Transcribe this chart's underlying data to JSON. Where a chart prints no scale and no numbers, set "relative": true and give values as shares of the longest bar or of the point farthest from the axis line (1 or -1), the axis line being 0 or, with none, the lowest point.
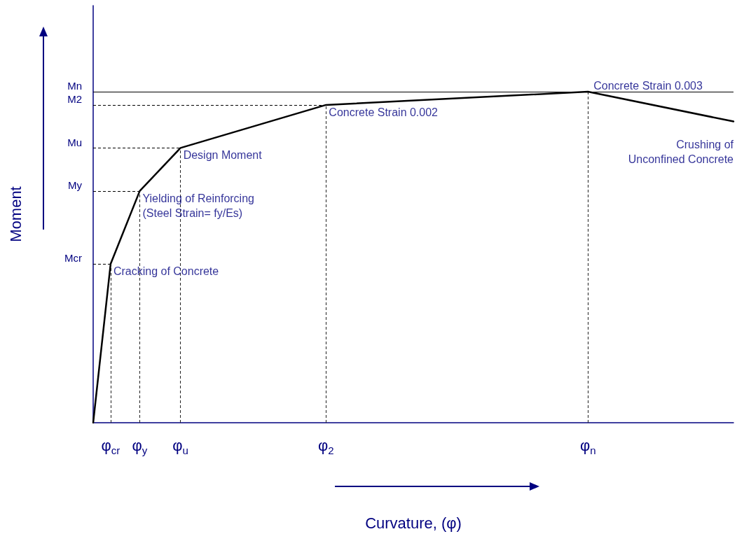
{
  "chart_data": {
    "type": "line",
    "relative": true,
    "xlabel": "Curvature, (φ)",
    "ylabel": "Moment",
    "categories": [
      null,
      null,
      null,
      "φ$_{cr}$",
      null,
      null,
      null,
      null,
      "φ$_{y}$",
      null,
      null,
      null,
      null,
      null,
      null,
      "φ$_{u}$",
      null,
      null,
      null,
      null,
      null,
      null,
      null,
      null,
      null,
      null,
      null,
      null,
      null,
      null,
      null,
      null,
      null,
      null,
      null,
      null,
      null,
      null,
      null,
      null,
      "φ$_{2}$",
      null,
      null,
      null,
      null,
      null,
      null,
      null,
      null,
      null,
      null,
      null,
      null,
      null,
      null,
      null,
      null,
      null,
      null,
      null,
      null,
      null,
      null,
      null,
      null,
      null,
      null,
      null,
      null,
      null,
      null,
      null,
      null,
      null,
      null,
      null,
      null,
      null,
      null,
      null,
      null,
      null,
      null,
      null,
      null,
      "φ$_{n}$",
      null,
      null,
      null,
      null,
      null,
      null,
      null,
      null,
      null,
      null,
      null,
      null,
      null,
      null,
      null,
      null,
      null,
      null,
      null,
      null,
      null,
      null,
      null,
      null,
      null
    ],
    "series": [
      {
        "color": "#000000",
        "values": [
          0,
          null,
          null,
          0.48,
          null,
          null,
          null,
          null,
          0.7,
          null,
          null,
          null,
          null,
          null,
          null,
          0.83,
          null,
          null,
          null,
          null,
          null,
          null,
          null,
          null,
          null,
          null,
          null,
          null,
          null,
          null,
          null,
          null,
          null,
          null,
          null,
          null,
          null,
          null,
          null,
          null,
          0.96,
          null,
          null,
          null,
          null,
          null,
          null,
          null,
          null,
          null,
          null,
          null,
          null,
          null,
          null,
          null,
          null,
          null,
          null,
          null,
          null,
          null,
          null,
          null,
          null,
          null,
          null,
          null,
          null,
          null,
          null,
          null,
          null,
          null,
          null,
          null,
          null,
          null,
          null,
          null,
          null,
          null,
          null,
          null,
          null,
          1,
          null,
          null,
          null,
          null,
          null,
          null,
          null,
          null,
          null,
          null,
          null,
          null,
          null,
          null,
          null,
          null,
          null,
          null,
          null,
          null,
          null,
          null,
          null,
          null,
          0.91
        ]
      }
    ],
    "ref_lines": [
      {
        "axis": "y",
        "value": 1,
        "label": "Mn",
        "color": "#000000",
        "line_style": "solid"
      },
      {
        "axis": "y",
        "value": 0.96,
        "label": "M2",
        "color": "#000000",
        "line_style": "dashed"
      },
      {
        "axis": "y",
        "value": 0.83,
        "label": "Mu",
        "color": "#000000",
        "line_style": "dashed"
      },
      {
        "axis": "y",
        "value": 0.7,
        "label": "My",
        "color": "#000000",
        "line_style": "dashed"
      },
      {
        "axis": "y",
        "value": 0.48,
        "label": "Mcr",
        "color": "#000000",
        "line_style": "dashed"
      }
    ],
    "annotations": [
      {
        "text": "Cracking of Concrete",
        "x": "φ$_{cr}$",
        "y": 0.48
      },
      {
        "text": "Yielding of Reinforcing\n(Steel Strain= fy/Es)",
        "x": "φ$_{y}$",
        "y": 0.7
      },
      {
        "text": "Design Moment",
        "x": "φ$_{u}$",
        "y": 0.83
      },
      {
        "text": "Concrete Strain 0.002",
        "x": "φ$_{2}$",
        "y": 0.96
      },
      {
        "text": "Concrete Strain 0.003",
        "x": "φ$_{n}$",
        "y": 1
      },
      "Crushing of\nUnconfined Concrete"
    ],
    "grid": "x",
    "marker": "none",
    "line_style": "solid"
  }
}
